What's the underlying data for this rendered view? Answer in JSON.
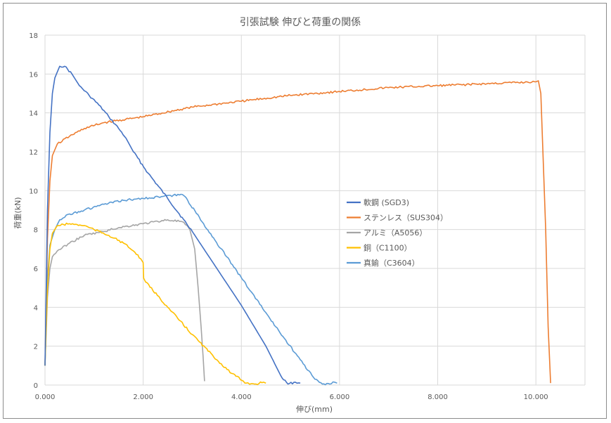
{
  "chart_data": {
    "type": "line",
    "title": "引張試験 伸びと荷重の関係",
    "xlabel": "伸び(mm)",
    "ylabel": "荷重(kN)",
    "xlim": [
      0,
      11
    ],
    "ylim": [
      0,
      18
    ],
    "x_ticks": [
      "0.000",
      "2.000",
      "4.000",
      "6.000",
      "8.000",
      "10.000"
    ],
    "x_tick_values": [
      0,
      2,
      4,
      6,
      8,
      10
    ],
    "y_ticks": [
      "0",
      "2",
      "4",
      "6",
      "8",
      "10",
      "12",
      "14",
      "16",
      "18"
    ],
    "y_tick_values": [
      0,
      2,
      4,
      6,
      8,
      10,
      12,
      14,
      16,
      18
    ],
    "grid": true,
    "legend_position": "right",
    "series": [
      {
        "name": "軟鋼 (SGD3)",
        "color": "#4472c4",
        "points": [
          [
            0,
            1.0
          ],
          [
            0.05,
            9.0
          ],
          [
            0.1,
            13.0
          ],
          [
            0.15,
            15.0
          ],
          [
            0.2,
            15.8
          ],
          [
            0.3,
            16.4
          ],
          [
            0.4,
            16.4
          ],
          [
            0.55,
            16.0
          ],
          [
            0.7,
            15.4
          ],
          [
            0.9,
            14.9
          ],
          [
            1.1,
            14.4
          ],
          [
            1.3,
            13.8
          ],
          [
            1.5,
            13.2
          ],
          [
            1.65,
            12.7
          ],
          [
            1.8,
            12.0
          ],
          [
            2.1,
            10.9
          ],
          [
            2.5,
            9.6
          ],
          [
            3.0,
            7.9
          ],
          [
            3.5,
            6.0
          ],
          [
            4.0,
            4.1
          ],
          [
            4.5,
            2.0
          ],
          [
            4.8,
            0.5
          ],
          [
            4.95,
            0.05
          ],
          [
            5.1,
            0.15
          ],
          [
            5.2,
            0.1
          ]
        ]
      },
      {
        "name": "ステンレス（SUS304）",
        "color": "#ed7d31",
        "points": [
          [
            0,
            1.0
          ],
          [
            0.05,
            7.5
          ],
          [
            0.1,
            10.5
          ],
          [
            0.15,
            11.8
          ],
          [
            0.25,
            12.4
          ],
          [
            0.5,
            12.8
          ],
          [
            0.8,
            13.2
          ],
          [
            1.2,
            13.5
          ],
          [
            2.0,
            13.8
          ],
          [
            3.0,
            14.3
          ],
          [
            4.0,
            14.6
          ],
          [
            5.0,
            14.9
          ],
          [
            6.0,
            15.1
          ],
          [
            7.0,
            15.3
          ],
          [
            8.0,
            15.4
          ],
          [
            9.0,
            15.5
          ],
          [
            10.0,
            15.6
          ],
          [
            10.05,
            15.65
          ],
          [
            10.1,
            15.0
          ],
          [
            10.2,
            8.0
          ],
          [
            10.25,
            3.0
          ],
          [
            10.3,
            0.1
          ]
        ]
      },
      {
        "name": "アルミ（A5056）",
        "color": "#a5a5a5",
        "points": [
          [
            0,
            1.0
          ],
          [
            0.05,
            4.5
          ],
          [
            0.1,
            6.0
          ],
          [
            0.15,
            6.6
          ],
          [
            0.25,
            6.9
          ],
          [
            0.5,
            7.3
          ],
          [
            0.8,
            7.7
          ],
          [
            1.2,
            7.9
          ],
          [
            1.5,
            8.1
          ],
          [
            2.0,
            8.3
          ],
          [
            2.5,
            8.5
          ],
          [
            2.8,
            8.4
          ],
          [
            2.95,
            8.0
          ],
          [
            3.05,
            7.0
          ],
          [
            3.12,
            5.0
          ],
          [
            3.18,
            3.0
          ],
          [
            3.22,
            1.5
          ],
          [
            3.25,
            0.2
          ]
        ]
      },
      {
        "name": "銅（C1100）",
        "color": "#ffc000",
        "points": [
          [
            0,
            1.0
          ],
          [
            0.05,
            5.0
          ],
          [
            0.1,
            7.0
          ],
          [
            0.15,
            7.8
          ],
          [
            0.25,
            8.2
          ],
          [
            0.5,
            8.3
          ],
          [
            0.8,
            8.2
          ],
          [
            1.0,
            8.0
          ],
          [
            1.3,
            7.7
          ],
          [
            1.6,
            7.3
          ],
          [
            1.8,
            6.9
          ],
          [
            1.95,
            6.5
          ],
          [
            2.0,
            6.3
          ],
          [
            2.01,
            5.5
          ],
          [
            2.05,
            5.3
          ],
          [
            2.5,
            4.0
          ],
          [
            3.0,
            2.6
          ],
          [
            3.5,
            1.3
          ],
          [
            3.8,
            0.6
          ],
          [
            4.1,
            0.1
          ],
          [
            4.3,
            0.05
          ],
          [
            4.45,
            0.15
          ],
          [
            4.5,
            0.1
          ]
        ]
      },
      {
        "name": "真鍮（C3604）",
        "color": "#5b9bd5",
        "points": [
          [
            0,
            1.0
          ],
          [
            0.05,
            5.5
          ],
          [
            0.1,
            7.2
          ],
          [
            0.2,
            8.0
          ],
          [
            0.3,
            8.5
          ],
          [
            0.5,
            8.8
          ],
          [
            0.8,
            9.0
          ],
          [
            1.2,
            9.3
          ],
          [
            1.6,
            9.5
          ],
          [
            2.0,
            9.6
          ],
          [
            2.4,
            9.7
          ],
          [
            2.8,
            9.8
          ],
          [
            2.85,
            9.7
          ],
          [
            3.2,
            8.4
          ],
          [
            3.7,
            6.6
          ],
          [
            4.2,
            4.8
          ],
          [
            4.7,
            3.0
          ],
          [
            5.2,
            1.3
          ],
          [
            5.5,
            0.3
          ],
          [
            5.65,
            0.05
          ],
          [
            5.8,
            0.05
          ],
          [
            5.9,
            0.15
          ],
          [
            5.95,
            0.1
          ]
        ]
      }
    ]
  }
}
